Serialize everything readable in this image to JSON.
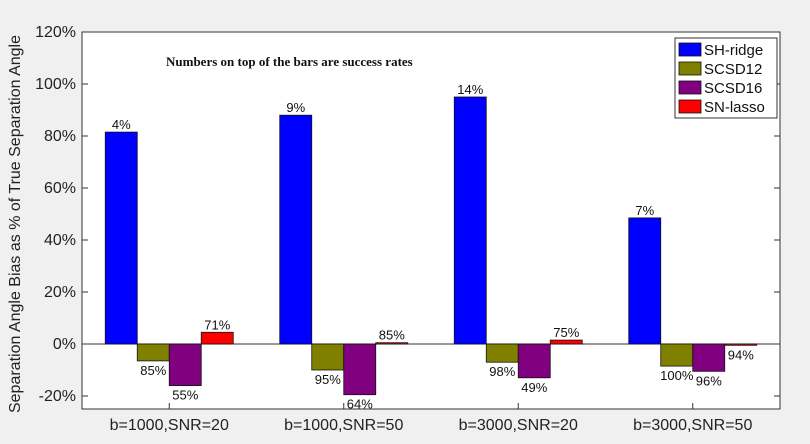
{
  "chart_data": {
    "type": "bar",
    "title": "",
    "xlabel": "",
    "ylabel": "Separation Angle Bias as % of True Separation Angle",
    "annotation": "Numbers on top of the bars are success rates",
    "categories": [
      "b=1000,SNR=20",
      "b=1000,SNR=50",
      "b=3000,SNR=20",
      "b=3000,SNR=50"
    ],
    "ylim": [
      -25,
      120
    ],
    "yticks": [
      -20,
      0,
      20,
      40,
      60,
      80,
      100,
      120
    ],
    "ytick_labels": [
      "-20%",
      "0%",
      "20%",
      "40%",
      "60%",
      "80%",
      "100%",
      "120%"
    ],
    "grid": false,
    "legend_position": "top-right",
    "series": [
      {
        "name": "SH-ridge",
        "color": "#0000ff",
        "values": [
          81.5,
          88,
          95,
          48.5
        ],
        "labels": [
          "4%",
          "9%",
          "14%",
          "7%"
        ]
      },
      {
        "name": "SCSD12",
        "color": "#808000",
        "values": [
          -6.5,
          -10,
          -7,
          -8.5
        ],
        "labels": [
          "85%",
          "95%",
          "98%",
          "100%"
        ]
      },
      {
        "name": "SCSD16",
        "color": "#800080",
        "values": [
          -16,
          -19.5,
          -13,
          -10.5
        ],
        "labels": [
          "55%",
          "64%",
          "49%",
          "96%"
        ]
      },
      {
        "name": "SN-lasso",
        "color": "#ff0000",
        "values": [
          4.5,
          0.5,
          1.5,
          -0.5
        ],
        "labels": [
          "71%",
          "85%",
          "75%",
          "94%"
        ]
      }
    ]
  }
}
